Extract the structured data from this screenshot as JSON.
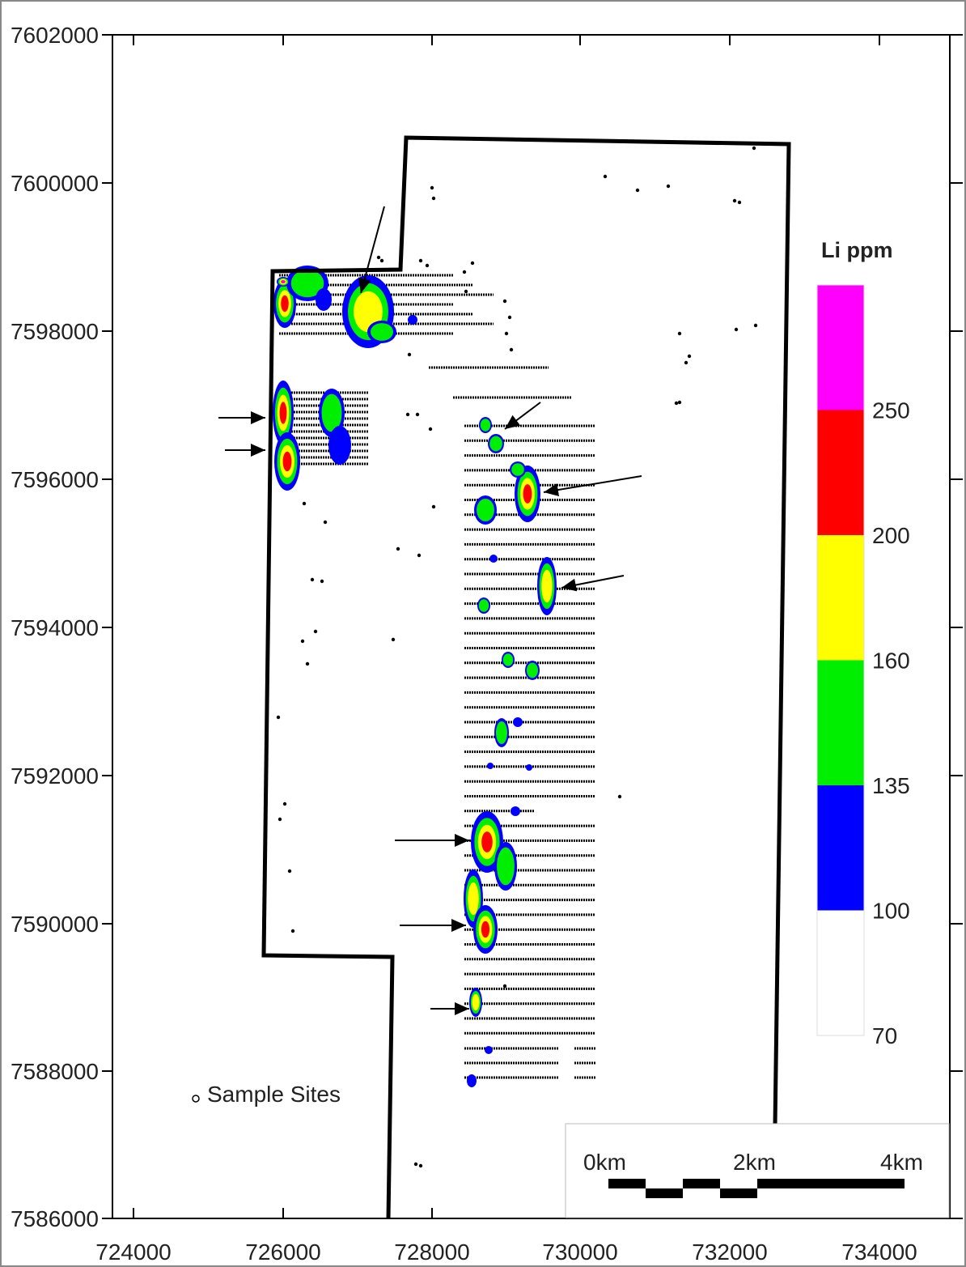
{
  "map": {
    "x_ticks": [
      "724000",
      "726000",
      "728000",
      "730000",
      "732000",
      "734000"
    ],
    "y_ticks": [
      "7602000",
      "7600000",
      "7598000",
      "7596000",
      "7594000",
      "7592000",
      "7590000",
      "7588000",
      "7586000"
    ]
  },
  "legend": {
    "title": "Li ppm",
    "classes": [
      {
        "min": 250,
        "color": "#ff00ff"
      },
      {
        "min": 200,
        "color": "#ff0000"
      },
      {
        "min": 160,
        "color": "#ffff00"
      },
      {
        "min": 135,
        "color": "#00ee00"
      },
      {
        "min": 100,
        "color": "#0000ff"
      },
      {
        "min": 70,
        "color": "#ffffff"
      }
    ],
    "labels": [
      "250",
      "200",
      "160",
      "135",
      "100",
      "70"
    ]
  },
  "sample_sites_label": "Sample Sites",
  "scale_bar": {
    "labels": [
      "0km",
      "2km",
      "4km"
    ]
  }
}
